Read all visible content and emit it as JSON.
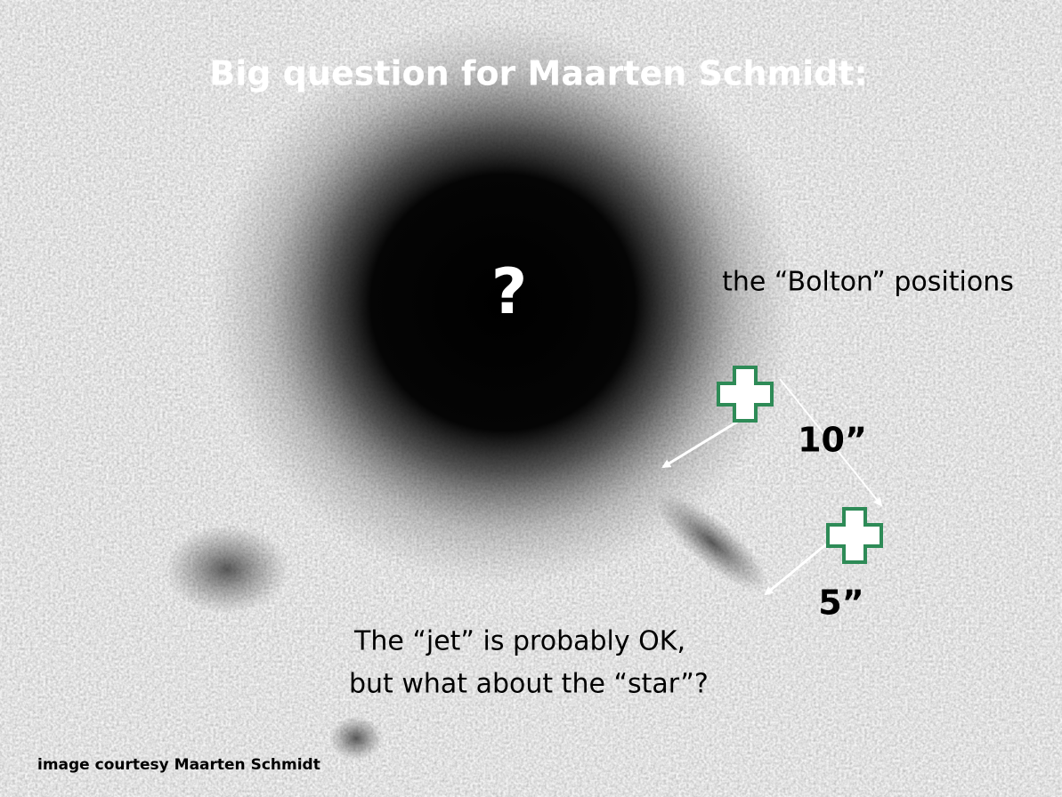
{
  "title": "Big question for Maarten Schmidt:",
  "center_mark": "?",
  "label": "the “Bolton” positions",
  "distance_long": "10”",
  "distance_short": "5”",
  "caption": [
    "The “jet” is probably OK,",
    "but what about the “star”?"
  ],
  "credit": "image courtesy Maarten Schmidt"
}
